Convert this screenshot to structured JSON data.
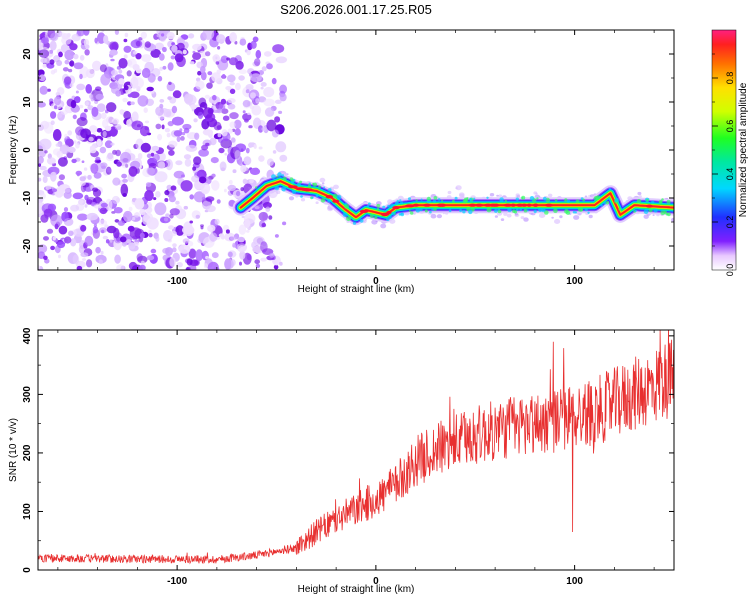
{
  "title": "S206.2026.001.17.25.R05",
  "chart_data": [
    {
      "type": "heatmap",
      "xlabel": "Height of straight line (km)",
      "ylabel": "Frequency (Hz)",
      "xlim": [
        -170,
        150
      ],
      "ylim": [
        -25,
        25
      ],
      "xticks": [
        -100,
        0,
        100
      ],
      "yticks": [
        -20,
        -10,
        0,
        10,
        20
      ],
      "grid": false,
      "noise_region_x": [
        -170,
        -52
      ],
      "signal_start_x": -68,
      "signal_trace": [
        {
          "x": -68,
          "y": -12
        },
        {
          "x": -62,
          "y": -10
        },
        {
          "x": -55,
          "y": -7.5
        },
        {
          "x": -48,
          "y": -6.5
        },
        {
          "x": -40,
          "y": -8
        },
        {
          "x": -30,
          "y": -8.5
        },
        {
          "x": -22,
          "y": -10
        },
        {
          "x": -15,
          "y": -12.5
        },
        {
          "x": -10,
          "y": -14
        },
        {
          "x": -5,
          "y": -12.5
        },
        {
          "x": 0,
          "y": -13
        },
        {
          "x": 5,
          "y": -13.5
        },
        {
          "x": 10,
          "y": -12
        },
        {
          "x": 20,
          "y": -11.5
        },
        {
          "x": 60,
          "y": -11.5
        },
        {
          "x": 110,
          "y": -11.5
        },
        {
          "x": 118,
          "y": -9
        },
        {
          "x": 123,
          "y": -13.5
        },
        {
          "x": 130,
          "y": -11.5
        },
        {
          "x": 150,
          "y": -12
        }
      ],
      "colorbar": {
        "label": "Normalized spectral amplitude",
        "range": [
          0,
          1
        ],
        "ticks": [
          "0.0",
          "0.2",
          "0.4",
          "0.6",
          "0.8"
        ],
        "ticks_major": [
          0.2,
          0.4,
          0.6,
          0.8
        ],
        "ticks_minor": [
          0.1,
          0.3,
          0.5,
          0.7,
          0.9
        ]
      }
    },
    {
      "type": "line",
      "xlabel": "Height of straight line (km)",
      "ylabel": "SNR (10 * v/v)",
      "xlim": [
        -170,
        150
      ],
      "ylim": [
        0,
        410
      ],
      "xticks": [
        -100,
        0,
        100
      ],
      "yticks": [
        0,
        100,
        200,
        300,
        400
      ],
      "grid": false,
      "series": [
        {
          "color": "#e83030",
          "trend": [
            {
              "x": -170,
              "y": 20
            },
            {
              "x": -80,
              "y": 18
            },
            {
              "x": -60,
              "y": 25
            },
            {
              "x": -40,
              "y": 38
            },
            {
              "x": -30,
              "y": 65
            },
            {
              "x": -15,
              "y": 95
            },
            {
              "x": 0,
              "y": 120
            },
            {
              "x": 10,
              "y": 145
            },
            {
              "x": 20,
              "y": 185
            },
            {
              "x": 30,
              "y": 205
            },
            {
              "x": 50,
              "y": 230
            },
            {
              "x": 70,
              "y": 245
            },
            {
              "x": 90,
              "y": 255
            },
            {
              "x": 110,
              "y": 270
            },
            {
              "x": 130,
              "y": 300
            },
            {
              "x": 150,
              "y": 330
            }
          ],
          "spikes": [
            {
              "x": 99,
              "y": 65
            },
            {
              "x": 143,
              "y": 410
            },
            {
              "x": 146,
              "y": 360
            }
          ]
        }
      ]
    }
  ]
}
